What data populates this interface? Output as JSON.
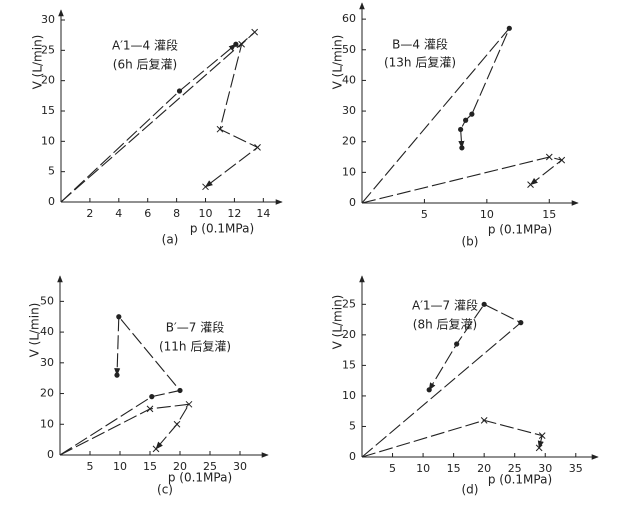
{
  "chart_data": [
    {
      "type": "line",
      "ylabel": "V (L/min)",
      "xlabel": "p (0.1MPa)",
      "caption": "(a)",
      "annotation": [
        "A′1—4 灌段",
        "(6h 后复灌)"
      ],
      "xlim": [
        0,
        14.6
      ],
      "ylim": [
        0,
        30
      ],
      "xticks": [
        2,
        4,
        6,
        8,
        10,
        12,
        14
      ],
      "yticks": [
        0,
        5,
        10,
        15,
        20,
        25,
        30
      ],
      "color": "#222",
      "series": [
        {
          "marker": "circle",
          "x": [
            0,
            8.2,
            12.1
          ],
          "values": [
            0,
            18.3,
            26
          ]
        },
        {
          "marker": "cross",
          "x": [
            0,
            13.4,
            12.5,
            11,
            13.6,
            10
          ],
          "values": [
            0,
            28,
            26,
            12,
            9,
            2.5
          ]
        }
      ]
    },
    {
      "type": "line",
      "ylabel": "V (L/min)",
      "xlabel": "p (0.1MPa)",
      "caption": "(b)",
      "annotation": [
        "B—4 灌段",
        "(13h 后复灌)"
      ],
      "xlim": [
        0,
        16.5
      ],
      "ylim": [
        0,
        62
      ],
      "xticks": [
        5,
        10,
        15
      ],
      "yticks": [
        0,
        10,
        20,
        30,
        40,
        50,
        60
      ],
      "color": "#222",
      "series": [
        {
          "marker": "circle",
          "x": [
            0,
            11.8,
            8.8,
            8.3,
            7.9,
            8
          ],
          "values": [
            0,
            57,
            29,
            27,
            24,
            18
          ]
        },
        {
          "marker": "cross",
          "x": [
            0,
            15,
            16,
            13.5
          ],
          "values": [
            0,
            15,
            14,
            6
          ]
        }
      ]
    },
    {
      "type": "line",
      "ylabel": "V (L/min)",
      "xlabel": "p (0.1MPa)",
      "caption": "(c)",
      "annotation": [
        "B′—7 灌段",
        "(11h 后复灌)"
      ],
      "xlim": [
        0,
        33
      ],
      "ylim": [
        0,
        55
      ],
      "xticks": [
        5,
        10,
        15,
        20,
        25,
        30
      ],
      "yticks": [
        0,
        10,
        20,
        30,
        40,
        50
      ],
      "color": "#222",
      "series": [
        {
          "marker": "circle",
          "x": [
            0,
            15.3,
            20,
            9.8,
            9.5
          ],
          "values": [
            0,
            19,
            21,
            45,
            26
          ]
        },
        {
          "marker": "cross",
          "x": [
            0,
            15,
            21.5,
            19.5,
            16
          ],
          "values": [
            0,
            15,
            16.5,
            10,
            2
          ]
        }
      ]
    },
    {
      "type": "line",
      "ylabel": "V (L/min)",
      "xlabel": "p (0.1MPa)",
      "caption": "(d)",
      "annotation": [
        "A′1—7 灌段",
        "(8h 后复灌)"
      ],
      "xlim": [
        0,
        37
      ],
      "ylim": [
        0,
        28
      ],
      "xticks": [
        5,
        10,
        15,
        20,
        25,
        30,
        35
      ],
      "yticks": [
        0,
        5,
        10,
        15,
        20,
        25
      ],
      "color": "#222",
      "series": [
        {
          "marker": "circle",
          "x": [
            0,
            26,
            20,
            15.5,
            11
          ],
          "values": [
            0,
            22,
            25,
            18.5,
            11
          ]
        },
        {
          "marker": "cross",
          "x": [
            0,
            20,
            29.5,
            29
          ],
          "values": [
            0,
            6,
            3.5,
            1.5
          ]
        }
      ]
    }
  ]
}
